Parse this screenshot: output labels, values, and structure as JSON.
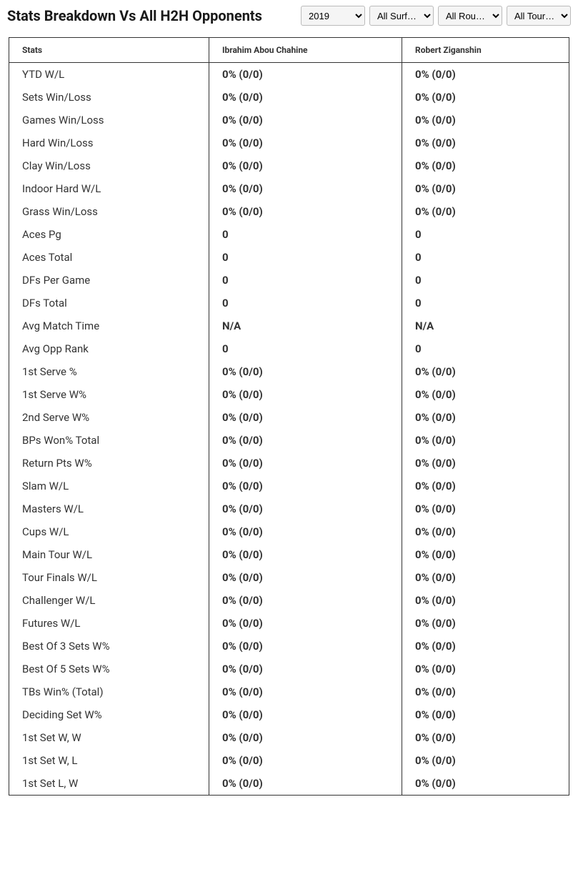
{
  "header": {
    "title": "Stats Breakdown Vs All H2H Opponents",
    "selects": {
      "year": {
        "selected": "2019",
        "options": [
          "2019"
        ]
      },
      "surface": {
        "selected": "All Surf…",
        "options": [
          "All Surf…"
        ]
      },
      "round": {
        "selected": "All Rou…",
        "options": [
          "All Rou…"
        ]
      },
      "tour": {
        "selected": "All Tour…",
        "options": [
          "All Tour…"
        ]
      }
    }
  },
  "table": {
    "columns": [
      "Stats",
      "Ibrahim Abou Chahine",
      "Robert Ziganshin"
    ],
    "rows": [
      [
        "YTD W/L",
        "0% (0/0)",
        "0% (0/0)"
      ],
      [
        "Sets Win/Loss",
        "0% (0/0)",
        "0% (0/0)"
      ],
      [
        "Games Win/Loss",
        "0% (0/0)",
        "0% (0/0)"
      ],
      [
        "Hard Win/Loss",
        "0% (0/0)",
        "0% (0/0)"
      ],
      [
        "Clay Win/Loss",
        "0% (0/0)",
        "0% (0/0)"
      ],
      [
        "Indoor Hard W/L",
        "0% (0/0)",
        "0% (0/0)"
      ],
      [
        "Grass Win/Loss",
        "0% (0/0)",
        "0% (0/0)"
      ],
      [
        "Aces Pg",
        "0",
        "0"
      ],
      [
        "Aces Total",
        "0",
        "0"
      ],
      [
        "DFs Per Game",
        "0",
        "0"
      ],
      [
        "DFs Total",
        "0",
        "0"
      ],
      [
        "Avg Match Time",
        "N/A",
        "N/A"
      ],
      [
        "Avg Opp Rank",
        "0",
        "0"
      ],
      [
        "1st Serve %",
        "0% (0/0)",
        "0% (0/0)"
      ],
      [
        "1st Serve W%",
        "0% (0/0)",
        "0% (0/0)"
      ],
      [
        "2nd Serve W%",
        "0% (0/0)",
        "0% (0/0)"
      ],
      [
        "BPs Won% Total",
        "0% (0/0)",
        "0% (0/0)"
      ],
      [
        "Return Pts W%",
        "0% (0/0)",
        "0% (0/0)"
      ],
      [
        "Slam W/L",
        "0% (0/0)",
        "0% (0/0)"
      ],
      [
        "Masters W/L",
        "0% (0/0)",
        "0% (0/0)"
      ],
      [
        "Cups W/L",
        "0% (0/0)",
        "0% (0/0)"
      ],
      [
        "Main Tour W/L",
        "0% (0/0)",
        "0% (0/0)"
      ],
      [
        "Tour Finals W/L",
        "0% (0/0)",
        "0% (0/0)"
      ],
      [
        "Challenger W/L",
        "0% (0/0)",
        "0% (0/0)"
      ],
      [
        "Futures W/L",
        "0% (0/0)",
        "0% (0/0)"
      ],
      [
        "Best Of 3 Sets W%",
        "0% (0/0)",
        "0% (0/0)"
      ],
      [
        "Best Of 5 Sets W%",
        "0% (0/0)",
        "0% (0/0)"
      ],
      [
        "TBs Win% (Total)",
        "0% (0/0)",
        "0% (0/0)"
      ],
      [
        "Deciding Set W%",
        "0% (0/0)",
        "0% (0/0)"
      ],
      [
        "1st Set W, W",
        "0% (0/0)",
        "0% (0/0)"
      ],
      [
        "1st Set W, L",
        "0% (0/0)",
        "0% (0/0)"
      ],
      [
        "1st Set L, W",
        "0% (0/0)",
        "0% (0/0)"
      ]
    ]
  },
  "styling": {
    "title_fontsize": 20,
    "title_color": "#1a1a1a",
    "header_fontsize": 12,
    "cell_fontsize": 15,
    "text_color": "#333333",
    "border_color": "#333333",
    "background": "#ffffff",
    "select_bg": "#f5f5f5",
    "select_border": "#bbbbbb"
  }
}
